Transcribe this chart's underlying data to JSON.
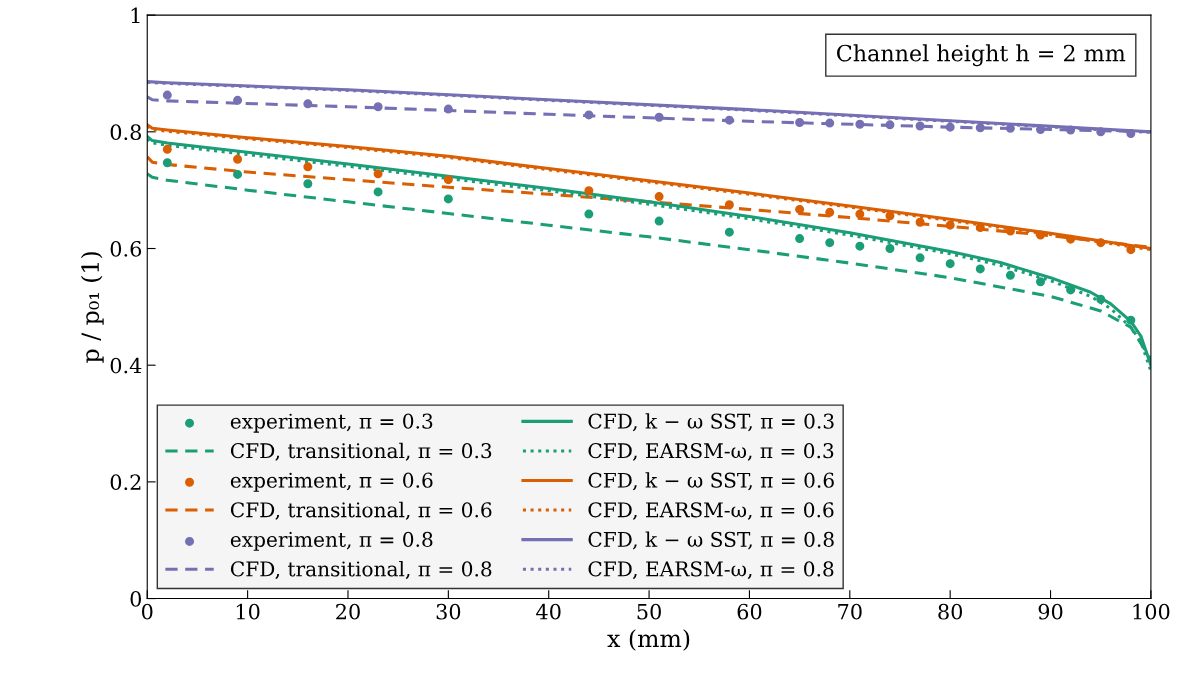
{
  "chart_data": {
    "type": "line",
    "xlabel": "x (mm)",
    "ylabel": "p / p₀₁ (1)",
    "xlim": [
      0,
      100
    ],
    "ylim": [
      0,
      1
    ],
    "xticks": [
      0,
      10,
      20,
      30,
      40,
      50,
      60,
      70,
      80,
      90,
      100
    ],
    "yticks": [
      0,
      0.2,
      0.4,
      0.6,
      0.8,
      1
    ],
    "grid": false,
    "legend": "bottom left",
    "annotations": [
      "Channel height h = 2 mm"
    ],
    "series": [
      {
        "name": "experiment, π = 0.3",
        "type": "scatter",
        "marker": "circle",
        "color": "#1b9e77",
        "x": [
          2,
          9,
          16,
          23,
          30,
          44,
          51,
          58,
          65,
          68,
          71,
          74,
          77,
          80,
          83,
          86,
          89,
          92,
          95,
          98
        ],
        "values": [
          0.747,
          0.727,
          0.711,
          0.697,
          0.685,
          0.659,
          0.647,
          0.628,
          0.617,
          0.61,
          0.604,
          0.6,
          0.584,
          0.574,
          0.565,
          0.554,
          0.543,
          0.529,
          0.513,
          0.477
        ]
      },
      {
        "name": "CFD, transitional, π = 0.3",
        "line_style": "dashed",
        "color": "#1b9e77",
        "x": [
          0,
          0.5,
          2,
          10,
          20,
          30,
          40,
          50,
          60,
          70,
          80,
          90,
          95,
          98,
          100
        ],
        "values": [
          0.728,
          0.722,
          0.717,
          0.7,
          0.68,
          0.66,
          0.64,
          0.62,
          0.598,
          0.575,
          0.55,
          0.518,
          0.493,
          0.465,
          0.41
        ]
      },
      {
        "name": "experiment, π = 0.6",
        "type": "scatter",
        "marker": "circle",
        "color": "#d95f02",
        "x": [
          2,
          9,
          16,
          23,
          30,
          44,
          51,
          58,
          65,
          68,
          71,
          74,
          77,
          80,
          83,
          86,
          89,
          92,
          95,
          98
        ],
        "values": [
          0.77,
          0.753,
          0.74,
          0.728,
          0.718,
          0.699,
          0.689,
          0.675,
          0.667,
          0.662,
          0.659,
          0.656,
          0.645,
          0.64,
          0.636,
          0.63,
          0.623,
          0.616,
          0.61,
          0.598
        ]
      },
      {
        "name": "CFD, transitional, π = 0.6",
        "line_style": "dashed",
        "color": "#d95f02",
        "x": [
          0,
          0.5,
          2,
          10,
          20,
          30,
          40,
          50,
          60,
          70,
          80,
          90,
          100
        ],
        "values": [
          0.757,
          0.748,
          0.744,
          0.731,
          0.718,
          0.705,
          0.693,
          0.68,
          0.667,
          0.653,
          0.638,
          0.622,
          0.602
        ]
      },
      {
        "name": "experiment, π = 0.8",
        "type": "scatter",
        "marker": "circle",
        "color": "#7570b3",
        "x": [
          2,
          9,
          16,
          23,
          30,
          44,
          51,
          58,
          65,
          68,
          71,
          74,
          77,
          80,
          83,
          86,
          89,
          92,
          95,
          98
        ],
        "values": [
          0.863,
          0.854,
          0.848,
          0.843,
          0.839,
          0.829,
          0.825,
          0.82,
          0.816,
          0.815,
          0.813,
          0.812,
          0.81,
          0.808,
          0.807,
          0.806,
          0.804,
          0.803,
          0.8,
          0.797
        ]
      },
      {
        "name": "CFD, transitional, π = 0.8",
        "line_style": "dashed",
        "color": "#7570b3",
        "x": [
          0,
          0.5,
          2,
          20,
          40,
          60,
          80,
          100
        ],
        "values": [
          0.86,
          0.855,
          0.853,
          0.843,
          0.83,
          0.818,
          0.808,
          0.8
        ]
      },
      {
        "name": "CFD, k − ω SST, π = 0.3",
        "line_style": "solid",
        "color": "#1b9e77",
        "x": [
          0,
          0.5,
          2,
          10,
          20,
          30,
          40,
          50,
          60,
          70,
          80,
          85,
          90,
          94,
          96,
          98,
          99,
          100
        ],
        "values": [
          0.792,
          0.785,
          0.781,
          0.765,
          0.745,
          0.724,
          0.703,
          0.68,
          0.655,
          0.627,
          0.595,
          0.576,
          0.55,
          0.525,
          0.505,
          0.475,
          0.45,
          0.4
        ]
      },
      {
        "name": "CFD, EARSM-ω, π = 0.3",
        "line_style": "dotted",
        "color": "#1b9e77",
        "x": [
          0,
          0.5,
          2,
          10,
          20,
          30,
          40,
          50,
          60,
          70,
          80,
          85,
          90,
          94,
          96,
          98,
          99,
          100
        ],
        "values": [
          0.788,
          0.781,
          0.777,
          0.761,
          0.741,
          0.72,
          0.699,
          0.676,
          0.651,
          0.623,
          0.591,
          0.571,
          0.545,
          0.518,
          0.497,
          0.465,
          0.44,
          0.39
        ]
      },
      {
        "name": "CFD, k − ω SST, π = 0.6",
        "line_style": "solid",
        "color": "#d95f02",
        "x": [
          0,
          0.5,
          2,
          10,
          20,
          30,
          40,
          50,
          60,
          70,
          80,
          90,
          100
        ],
        "values": [
          0.812,
          0.806,
          0.803,
          0.79,
          0.775,
          0.758,
          0.737,
          0.716,
          0.695,
          0.673,
          0.65,
          0.626,
          0.6
        ]
      },
      {
        "name": "CFD, EARSM-ω, π = 0.6",
        "line_style": "dotted",
        "color": "#d95f02",
        "x": [
          0,
          0.5,
          2,
          10,
          20,
          30,
          40,
          50,
          60,
          70,
          80,
          90,
          100
        ],
        "values": [
          0.81,
          0.804,
          0.801,
          0.788,
          0.773,
          0.756,
          0.735,
          0.714,
          0.693,
          0.671,
          0.648,
          0.624,
          0.598
        ]
      },
      {
        "name": "CFD, k − ω SST, π = 0.8",
        "line_style": "solid",
        "color": "#7570b3",
        "x": [
          0,
          2,
          20,
          40,
          60,
          80,
          100
        ],
        "values": [
          0.886,
          0.884,
          0.872,
          0.855,
          0.838,
          0.819,
          0.8
        ]
      },
      {
        "name": "CFD, EARSM-ω, π = 0.8",
        "line_style": "dotted",
        "color": "#7570b3",
        "x": [
          0,
          2,
          20,
          40,
          60,
          80,
          100
        ],
        "values": [
          0.885,
          0.883,
          0.871,
          0.854,
          0.837,
          0.818,
          0.799
        ]
      }
    ]
  }
}
